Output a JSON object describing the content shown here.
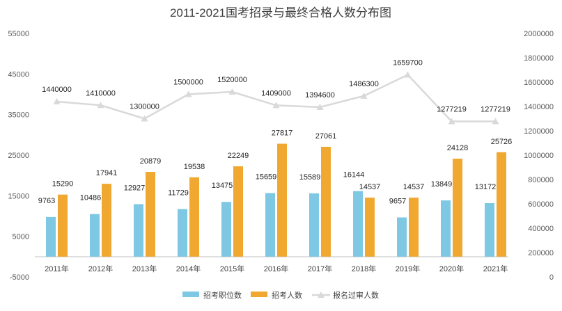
{
  "chart_data": {
    "type": "bar",
    "title": "2011-2021国考招录与最终合格人数分布图",
    "categories": [
      "2011年",
      "2012年",
      "2013年",
      "2014年",
      "2015年",
      "2016年",
      "2017年",
      "2018年",
      "2019年",
      "2020年",
      "2021年"
    ],
    "series": [
      {
        "name": "招考职位数",
        "type": "bar",
        "axis": "left",
        "color": "#7ec8e3",
        "values": [
          9763,
          10486,
          12927,
          11729,
          13475,
          15659,
          15589,
          16144,
          9657,
          13849,
          13172
        ]
      },
      {
        "name": "招考人数",
        "type": "bar",
        "axis": "left",
        "color": "#f0a830",
        "values": [
          15290,
          17941,
          20879,
          19538,
          22249,
          27817,
          27061,
          14537,
          14537,
          24128,
          25726
        ]
      },
      {
        "name": "报名过审人数",
        "type": "line",
        "axis": "right",
        "color": "#d9d9d9",
        "values": [
          1440000,
          1410000,
          1300000,
          1500000,
          1520000,
          1409000,
          1394600,
          1486300,
          1659700,
          1277219,
          1277219
        ]
      }
    ],
    "y_left": {
      "min": -5000,
      "max": 55000,
      "ticks": [
        55000,
        45000,
        35000,
        25000,
        15000,
        5000,
        -5000
      ]
    },
    "y_right": {
      "min": 0,
      "max": 2000000,
      "ticks": [
        2000000,
        1800000,
        1600000,
        1400000,
        1200000,
        1000000,
        800000,
        600000,
        400000,
        200000,
        0
      ]
    },
    "grid": false,
    "legend_position": "bottom"
  }
}
